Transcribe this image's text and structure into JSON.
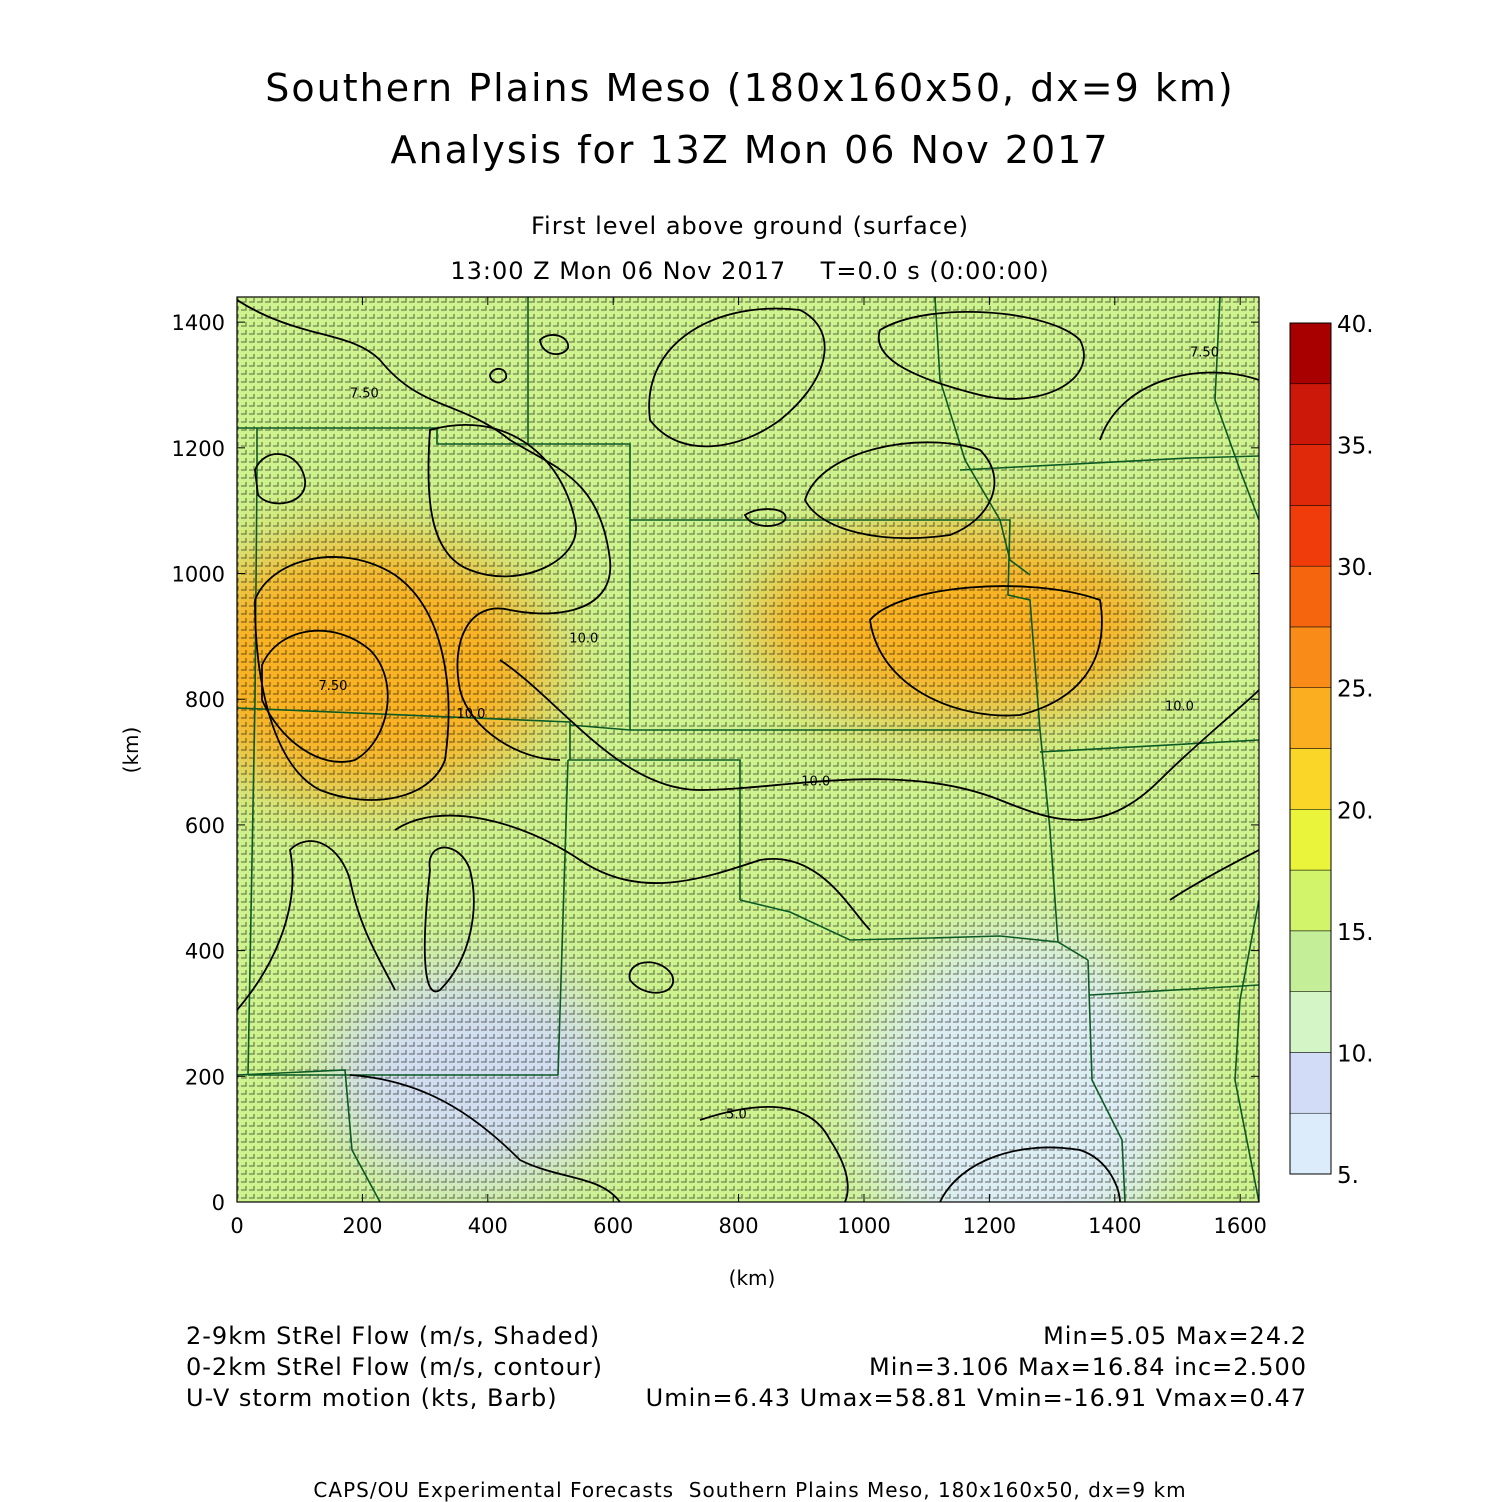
{
  "title": {
    "line1": "Southern Plains Meso (180x160x50, dx=9 km)",
    "line2": "Analysis for 13Z Mon 06 Nov 2017"
  },
  "subtitle": {
    "level": "First level above ground (surface)",
    "time": "13:00 Z Mon 06 Nov 2017    T=0.0 s (0:00:00)"
  },
  "axes": {
    "x_label": "(km)",
    "y_label": "(km)",
    "x_range": [
      0,
      1630
    ],
    "y_range": [
      0,
      1440
    ],
    "x_ticks": [
      0,
      200,
      400,
      600,
      800,
      1000,
      1200,
      1400,
      1600
    ],
    "y_ticks": [
      0,
      200,
      400,
      600,
      800,
      1000,
      1200,
      1400
    ]
  },
  "colorbar": {
    "ticks": [
      "5.",
      "10.",
      "15.",
      "20.",
      "25.",
      "30.",
      "35.",
      "40."
    ],
    "bins": [
      {
        "from": 5.0,
        "to": 7.5,
        "color": "#dcecfa"
      },
      {
        "from": 7.5,
        "to": 10.0,
        "color": "#d2dcf6"
      },
      {
        "from": 10.0,
        "to": 12.5,
        "color": "#d4f6c6"
      },
      {
        "from": 12.5,
        "to": 15.0,
        "color": "#c4ef98"
      },
      {
        "from": 15.0,
        "to": 17.5,
        "color": "#d2f46a"
      },
      {
        "from": 17.5,
        "to": 20.0,
        "color": "#eaf43a"
      },
      {
        "from": 20.0,
        "to": 22.5,
        "color": "#fad628"
      },
      {
        "from": 22.5,
        "to": 25.0,
        "color": "#fbae20"
      },
      {
        "from": 25.0,
        "to": 27.5,
        "color": "#f98c18"
      },
      {
        "from": 27.5,
        "to": 30.0,
        "color": "#f5650e"
      },
      {
        "from": 30.0,
        "to": 32.5,
        "color": "#f03c0a"
      },
      {
        "from": 32.5,
        "to": 35.0,
        "color": "#e0280a"
      },
      {
        "from": 35.0,
        "to": 37.5,
        "color": "#cc1808"
      },
      {
        "from": 37.5,
        "to": 40.0,
        "color": "#a80000"
      }
    ]
  },
  "contour_labels": [
    {
      "text": "7.50",
      "x": 180,
      "y": 1280
    },
    {
      "text": "10.0",
      "x": 530,
      "y": 890
    },
    {
      "text": "7.50",
      "x": 130,
      "y": 815
    },
    {
      "text": "10.0",
      "x": 350,
      "y": 770
    },
    {
      "text": "10.0",
      "x": 900,
      "y": 663
    },
    {
      "text": "7.50",
      "x": 1520,
      "y": 1345
    },
    {
      "text": "10.0",
      "x": 1480,
      "y": 782
    },
    {
      "text": "5.0",
      "x": 780,
      "y": 133
    }
  ],
  "field_maxima": [
    {
      "x": 200,
      "y": 850,
      "value": 24.2
    },
    {
      "x": 1150,
      "y": 920,
      "value": 23.0
    }
  ],
  "field_minima": [
    {
      "x": 1250,
      "y": 160,
      "value": 5.05
    },
    {
      "x": 380,
      "y": 200,
      "value": 9.0
    }
  ],
  "legend": {
    "line1_left": "2-9km StRel Flow (m/s, Shaded)",
    "line1_right": "Min=5.05 Max=24.2",
    "line2_left": "0-2km StRel Flow (m/s, contour)",
    "line2_right": "Min=3.106 Max=16.84 inc=2.500",
    "line3_left": "U-V storm motion (kts, Barb)",
    "line3_right": "Umin=6.43 Umax=58.81 Vmin=-16.91 Vmax=0.47"
  },
  "credit": "CAPS/OU Experimental Forecasts  Southern Plains Meso, 180x160x50, dx=9 km"
}
